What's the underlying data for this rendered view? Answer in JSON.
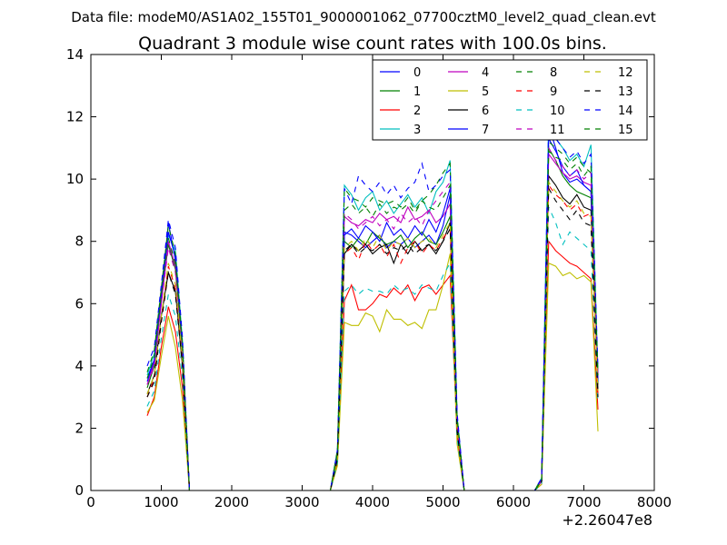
{
  "header_text": "Data file: modeM0/AS1A02_155T01_9000001062_07700cztM0_level2_quad_clean.evt",
  "chart_data": {
    "type": "line",
    "title": "Quadrant 3 module wise count rates with 100.0s bins.",
    "xlabel": "",
    "ylabel": "",
    "x_offset_label": "+2.26047e8",
    "xlim": [
      0,
      8000
    ],
    "ylim": [
      0,
      14
    ],
    "x_ticks": [
      0,
      1000,
      2000,
      3000,
      4000,
      5000,
      6000,
      7000,
      8000
    ],
    "y_ticks": [
      0,
      2,
      4,
      6,
      8,
      10,
      12,
      14
    ],
    "grid": false,
    "legend_position": "top-right",
    "x": [
      800,
      900,
      1000,
      1100,
      1200,
      1300,
      1400,
      1500,
      1600,
      1700,
      1800,
      1900,
      2000,
      2100,
      2200,
      2300,
      2400,
      2500,
      2600,
      2700,
      2800,
      2900,
      3000,
      3100,
      3200,
      3300,
      3400,
      3500,
      3600,
      3700,
      3800,
      3900,
      4000,
      4100,
      4200,
      4300,
      4400,
      4500,
      4600,
      4700,
      4800,
      4900,
      5000,
      5100,
      5200,
      5300,
      5400,
      5500,
      5600,
      5700,
      5800,
      5900,
      6000,
      6100,
      6200,
      6300,
      6400,
      6500,
      6600,
      6700,
      6800,
      6900,
      7000,
      7100,
      7200
    ],
    "series": [
      {
        "name": "0",
        "color": "#0000ff",
        "dash": "solid",
        "values": [
          3.6,
          4.2,
          6.2,
          8.6,
          7.4,
          4.5,
          0,
          0,
          0,
          0,
          0,
          0,
          0,
          0,
          0,
          0,
          0,
          0,
          0,
          0,
          0,
          0,
          0,
          0,
          0,
          0,
          0,
          1.2,
          8.3,
          8.2,
          8.0,
          7.8,
          8.0,
          8.2,
          7.8,
          8.0,
          7.9,
          8.1,
          7.8,
          8.0,
          8.2,
          7.9,
          8.5,
          9.5,
          2.2,
          0,
          0,
          0,
          0,
          0,
          0,
          0,
          0,
          0,
          0,
          0,
          0.3,
          11.7,
          11.0,
          10.2,
          9.9,
          10.0,
          9.8,
          9.6,
          3.5
        ]
      },
      {
        "name": "1",
        "color": "#008000",
        "dash": "solid",
        "values": [
          3.3,
          4.0,
          6.1,
          7.9,
          7.1,
          4.4,
          0,
          0,
          0,
          0,
          0,
          0,
          0,
          0,
          0,
          0,
          0,
          0,
          0,
          0,
          0,
          0,
          0,
          0,
          0,
          0,
          0,
          1.1,
          8.0,
          7.8,
          8.1,
          7.9,
          8.3,
          8.1,
          7.9,
          8.0,
          8.2,
          7.8,
          8.1,
          8.3,
          8.0,
          7.9,
          8.3,
          8.8,
          2.1,
          0,
          0,
          0,
          0,
          0,
          0,
          0,
          0,
          0,
          0,
          0,
          0.3,
          11.0,
          10.6,
          10.1,
          9.8,
          9.6,
          9.5,
          9.4,
          3.4
        ]
      },
      {
        "name": "2",
        "color": "#ff0000",
        "dash": "solid",
        "values": [
          2.4,
          3.0,
          4.6,
          5.9,
          5.1,
          3.3,
          0,
          0,
          0,
          0,
          0,
          0,
          0,
          0,
          0,
          0,
          0,
          0,
          0,
          0,
          0,
          0,
          0,
          0,
          0,
          0,
          0,
          0.9,
          6.1,
          6.6,
          5.8,
          5.8,
          6.0,
          6.3,
          6.2,
          6.5,
          6.3,
          6.6,
          6.1,
          6.5,
          6.6,
          6.3,
          6.6,
          6.9,
          1.8,
          0,
          0,
          0,
          0,
          0,
          0,
          0,
          0,
          0,
          0,
          0,
          0.2,
          8.0,
          7.7,
          7.5,
          7.3,
          7.2,
          7.0,
          6.8,
          2.6
        ]
      },
      {
        "name": "3",
        "color": "#00bfbf",
        "dash": "solid",
        "values": [
          3.7,
          4.4,
          6.4,
          8.2,
          7.7,
          4.8,
          0,
          0,
          0,
          0,
          0,
          0,
          0,
          0,
          0,
          0,
          0,
          0,
          0,
          0,
          0,
          0,
          0,
          0,
          0,
          0,
          0,
          1.3,
          9.8,
          9.5,
          9.0,
          9.4,
          9.6,
          9.0,
          9.3,
          8.9,
          9.2,
          9.5,
          9.1,
          9.4,
          8.9,
          9.6,
          9.9,
          10.6,
          2.4,
          0,
          0,
          0,
          0,
          0,
          0,
          0,
          0,
          0,
          0,
          0,
          0.4,
          12.0,
          11.3,
          11.0,
          10.6,
          10.8,
          10.4,
          11.1,
          3.8
        ]
      },
      {
        "name": "4",
        "color": "#bf00bf",
        "dash": "solid",
        "values": [
          3.4,
          4.1,
          6.0,
          8.0,
          7.2,
          4.6,
          0,
          0,
          0,
          0,
          0,
          0,
          0,
          0,
          0,
          0,
          0,
          0,
          0,
          0,
          0,
          0,
          0,
          0,
          0,
          0,
          0,
          1.2,
          8.8,
          8.6,
          8.5,
          8.7,
          8.6,
          8.9,
          8.7,
          8.8,
          8.6,
          9.1,
          8.7,
          8.8,
          9.0,
          8.6,
          8.8,
          9.2,
          2.2,
          0,
          0,
          0,
          0,
          0,
          0,
          0,
          0,
          0,
          0,
          0,
          0.3,
          10.8,
          10.5,
          10.2,
          10.0,
          10.1,
          9.9,
          9.8,
          3.6
        ]
      },
      {
        "name": "5",
        "color": "#bfbf00",
        "dash": "solid",
        "values": [
          2.5,
          2.9,
          4.3,
          5.6,
          4.6,
          2.9,
          0,
          0,
          0,
          0,
          0,
          0,
          0,
          0,
          0,
          0,
          0,
          0,
          0,
          0,
          0,
          0,
          0,
          0,
          0,
          0,
          0,
          0.8,
          5.4,
          5.3,
          5.3,
          5.7,
          5.6,
          5.1,
          5.8,
          5.5,
          5.5,
          5.3,
          5.4,
          5.2,
          5.8,
          5.8,
          6.6,
          7.6,
          1.5,
          0,
          0,
          0,
          0,
          0,
          0,
          0,
          0,
          0,
          0,
          0,
          0.2,
          7.3,
          7.2,
          6.9,
          7.0,
          6.8,
          6.9,
          6.7,
          1.9
        ]
      },
      {
        "name": "6",
        "color": "#000000",
        "dash": "solid",
        "values": [
          3.1,
          3.7,
          5.6,
          7.0,
          6.4,
          4.0,
          0,
          0,
          0,
          0,
          0,
          0,
          0,
          0,
          0,
          0,
          0,
          0,
          0,
          0,
          0,
          0,
          0,
          0,
          0,
          0,
          0,
          1.0,
          7.6,
          7.9,
          7.7,
          7.9,
          7.6,
          7.8,
          7.9,
          7.3,
          7.9,
          7.6,
          8.0,
          7.7,
          7.9,
          7.6,
          8.0,
          8.6,
          2.0,
          0,
          0,
          0,
          0,
          0,
          0,
          0,
          0,
          0,
          0,
          0,
          0.3,
          10.1,
          9.8,
          9.4,
          9.2,
          9.5,
          9.1,
          9.0,
          3.2
        ]
      },
      {
        "name": "7",
        "color": "#0000ff",
        "dash": "solid",
        "values": [
          3.5,
          4.2,
          6.3,
          8.3,
          7.5,
          4.6,
          0,
          0,
          0,
          0,
          0,
          0,
          0,
          0,
          0,
          0,
          0,
          0,
          0,
          0,
          0,
          0,
          0,
          0,
          0,
          0,
          0,
          1.2,
          8.2,
          8.4,
          8.1,
          8.5,
          8.3,
          8.0,
          8.6,
          8.2,
          8.4,
          8.1,
          8.5,
          8.2,
          8.7,
          8.3,
          8.9,
          9.7,
          2.3,
          0,
          0,
          0,
          0,
          0,
          0,
          0,
          0,
          0,
          0,
          0,
          0.3,
          11.3,
          10.9,
          10.4,
          10.1,
          10.3,
          9.8,
          9.6,
          3.5
        ]
      },
      {
        "name": "8",
        "color": "#008000",
        "dash": "dashed",
        "values": [
          3.8,
          4.5,
          6.5,
          8.5,
          7.6,
          4.7,
          0,
          0,
          0,
          0,
          0,
          0,
          0,
          0,
          0,
          0,
          0,
          0,
          0,
          0,
          0,
          0,
          0,
          0,
          0,
          0,
          0,
          1.3,
          9.7,
          9.4,
          9.3,
          9.1,
          9.4,
          9.3,
          9.2,
          9.3,
          9.1,
          9.4,
          9.0,
          9.3,
          9.5,
          9.8,
          10.2,
          10.5,
          2.4,
          0,
          0,
          0,
          0,
          0,
          0,
          0,
          0,
          0,
          0,
          0,
          0.4,
          11.2,
          11.0,
          10.8,
          10.5,
          10.7,
          10.4,
          10.2,
          3.7
        ]
      },
      {
        "name": "9",
        "color": "#ff0000",
        "dash": "dashed",
        "values": [
          3.0,
          3.6,
          5.5,
          7.2,
          6.5,
          4.1,
          0,
          0,
          0,
          0,
          0,
          0,
          0,
          0,
          0,
          0,
          0,
          0,
          0,
          0,
          0,
          0,
          0,
          0,
          0,
          0,
          0,
          1.0,
          7.6,
          7.8,
          7.4,
          8.0,
          7.7,
          7.9,
          7.5,
          7.9,
          7.3,
          7.8,
          8.0,
          7.6,
          7.9,
          7.7,
          8.1,
          8.4,
          2.0,
          0,
          0,
          0,
          0,
          0,
          0,
          0,
          0,
          0,
          0,
          0,
          0.3,
          9.8,
          9.5,
          9.3,
          9.0,
          9.2,
          8.8,
          8.9,
          3.1
        ]
      },
      {
        "name": "10",
        "color": "#00bfbf",
        "dash": "dashed",
        "values": [
          2.7,
          3.2,
          4.9,
          6.3,
          5.6,
          3.6,
          0,
          0,
          0,
          0,
          0,
          0,
          0,
          0,
          0,
          0,
          0,
          0,
          0,
          0,
          0,
          0,
          0,
          0,
          0,
          0,
          0,
          0.9,
          6.4,
          6.6,
          6.3,
          6.5,
          6.4,
          6.4,
          6.3,
          6.6,
          6.4,
          6.5,
          6.3,
          6.6,
          6.5,
          6.4,
          6.9,
          7.3,
          1.7,
          0,
          0,
          0,
          0,
          0,
          0,
          0,
          0,
          0,
          0,
          0,
          0.2,
          9.1,
          8.6,
          7.9,
          8.3,
          8.1,
          7.9,
          7.7,
          2.8
        ]
      },
      {
        "name": "11",
        "color": "#bf00bf",
        "dash": "dashed",
        "values": [
          3.4,
          4.0,
          6.0,
          7.8,
          7.0,
          4.4,
          0,
          0,
          0,
          0,
          0,
          0,
          0,
          0,
          0,
          0,
          0,
          0,
          0,
          0,
          0,
          0,
          0,
          0,
          0,
          0,
          0,
          1.1,
          8.9,
          8.7,
          8.4,
          8.6,
          8.8,
          8.5,
          8.7,
          8.4,
          8.9,
          8.6,
          8.8,
          8.5,
          9.0,
          9.3,
          9.6,
          9.9,
          2.2,
          0,
          0,
          0,
          0,
          0,
          0,
          0,
          0,
          0,
          0,
          0,
          0.3,
          11.0,
          10.6,
          10.4,
          10.1,
          10.3,
          10.0,
          10.2,
          3.6
        ]
      },
      {
        "name": "12",
        "color": "#bfbf00",
        "dash": "dashed",
        "values": [
          3.1,
          3.7,
          5.6,
          7.3,
          6.6,
          4.2,
          0,
          0,
          0,
          0,
          0,
          0,
          0,
          0,
          0,
          0,
          0,
          0,
          0,
          0,
          0,
          0,
          0,
          0,
          0,
          0,
          0,
          1.0,
          7.8,
          8.0,
          7.7,
          8.1,
          7.8,
          8.2,
          7.7,
          8.0,
          7.9,
          8.1,
          7.8,
          8.0,
          8.1,
          7.8,
          8.2,
          8.6,
          2.0,
          0,
          0,
          0,
          0,
          0,
          0,
          0,
          0,
          0,
          0,
          0,
          0.3,
          9.9,
          9.6,
          9.3,
          9.1,
          9.3,
          8.9,
          8.8,
          3.2
        ]
      },
      {
        "name": "13",
        "color": "#000000",
        "dash": "dashed",
        "values": [
          3.0,
          3.5,
          5.4,
          7.0,
          6.3,
          4.0,
          0,
          0,
          0,
          0,
          0,
          0,
          0,
          0,
          0,
          0,
          0,
          0,
          0,
          0,
          0,
          0,
          0,
          0,
          0,
          0,
          0,
          1.0,
          7.7,
          7.9,
          7.6,
          7.8,
          7.7,
          7.9,
          7.6,
          7.8,
          7.7,
          7.9,
          7.6,
          7.8,
          7.9,
          7.7,
          8.0,
          8.4,
          1.9,
          0,
          0,
          0,
          0,
          0,
          0,
          0,
          0,
          0,
          0,
          0,
          0.3,
          9.7,
          9.3,
          9.0,
          8.7,
          9.0,
          8.6,
          8.5,
          3.0
        ]
      },
      {
        "name": "14",
        "color": "#0000ff",
        "dash": "dashed",
        "values": [
          4.0,
          4.6,
          6.6,
          8.7,
          7.8,
          4.9,
          0,
          0,
          0,
          0,
          0,
          0,
          0,
          0,
          0,
          0,
          0,
          0,
          0,
          0,
          0,
          0,
          0,
          0,
          0,
          0,
          0,
          1.3,
          9.7,
          9.2,
          10.1,
          9.8,
          9.6,
          9.9,
          9.5,
          9.8,
          9.4,
          9.7,
          9.9,
          10.5,
          9.6,
          9.8,
          10.1,
          10.3,
          2.5,
          0,
          0,
          0,
          0,
          0,
          0,
          0,
          0,
          0,
          0,
          0,
          0.4,
          11.8,
          11.3,
          11.0,
          10.7,
          10.9,
          10.5,
          10.8,
          3.9
        ]
      },
      {
        "name": "15",
        "color": "#008000",
        "dash": "dashed",
        "values": [
          3.6,
          4.3,
          6.3,
          8.1,
          7.3,
          4.6,
          0,
          0,
          0,
          0,
          0,
          0,
          0,
          0,
          0,
          0,
          0,
          0,
          0,
          0,
          0,
          0,
          0,
          0,
          0,
          0,
          0,
          1.2,
          9.0,
          9.2,
          8.9,
          9.1,
          8.8,
          9.2,
          8.9,
          9.1,
          9.0,
          9.2,
          8.9,
          9.3,
          9.1,
          9.0,
          9.4,
          9.8,
          2.3,
          0,
          0,
          0,
          0,
          0,
          0,
          0,
          0,
          0,
          0,
          0,
          0.3,
          10.9,
          10.7,
          10.6,
          10.3,
          10.5,
          10.1,
          10.4,
          3.7
        ]
      }
    ]
  }
}
